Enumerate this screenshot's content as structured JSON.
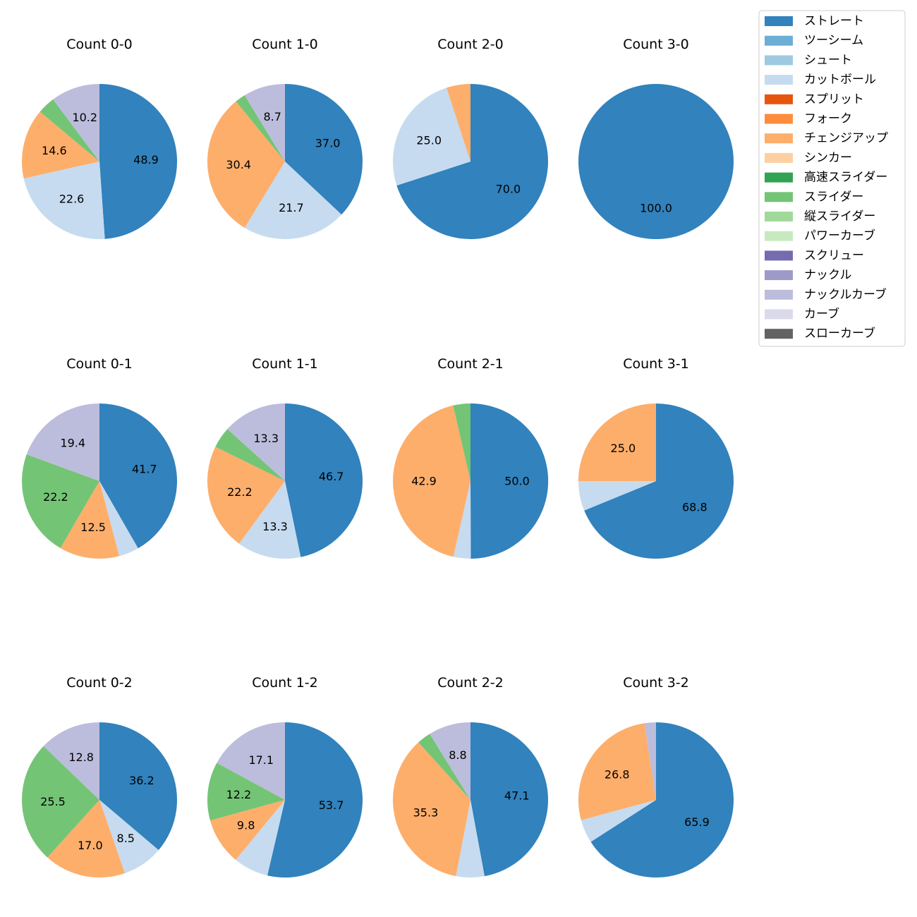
{
  "chart_data": {
    "type": "pie",
    "legend_position": "top-right",
    "series": [
      {
        "name": "ストレート",
        "color": "#3182bd"
      },
      {
        "name": "ツーシーム",
        "color": "#6baed6"
      },
      {
        "name": "シュート",
        "color": "#9ecae1"
      },
      {
        "name": "カットボール",
        "color": "#c6dbef"
      },
      {
        "name": "スプリット",
        "color": "#e6550d"
      },
      {
        "name": "フォーク",
        "color": "#fd8d3c"
      },
      {
        "name": "チェンジアップ",
        "color": "#fdae6b"
      },
      {
        "name": "シンカー",
        "color": "#fdd0a2"
      },
      {
        "name": "高速スライダー",
        "color": "#31a354"
      },
      {
        "name": "スライダー",
        "color": "#74c476"
      },
      {
        "name": "縦スライダー",
        "color": "#a1d99b"
      },
      {
        "name": "パワーカーブ",
        "color": "#c7e9c0"
      },
      {
        "name": "スクリュー",
        "color": "#756bb1"
      },
      {
        "name": "ナックル",
        "color": "#9e9ac8"
      },
      {
        "name": "ナックルカーブ",
        "color": "#bcbddc"
      },
      {
        "name": "カーブ",
        "color": "#dadaeb"
      },
      {
        "name": "スローカーブ",
        "color": "#636363"
      }
    ],
    "charts": [
      {
        "title": "Count 0-0",
        "slices": [
          {
            "pitch": "ストレート",
            "value": 48.9,
            "label": "48.9"
          },
          {
            "pitch": "カットボール",
            "value": 22.6,
            "label": "22.6"
          },
          {
            "pitch": "チェンジアップ",
            "value": 14.6,
            "label": "14.6"
          },
          {
            "pitch": "スライダー",
            "value": 3.7,
            "label": ""
          },
          {
            "pitch": "ナックルカーブ",
            "value": 10.2,
            "label": "10.2"
          }
        ]
      },
      {
        "title": "Count 1-0",
        "slices": [
          {
            "pitch": "ストレート",
            "value": 37.0,
            "label": "37.0"
          },
          {
            "pitch": "カットボール",
            "value": 21.7,
            "label": "21.7"
          },
          {
            "pitch": "チェンジアップ",
            "value": 30.4,
            "label": "30.4"
          },
          {
            "pitch": "スライダー",
            "value": 2.2,
            "label": ""
          },
          {
            "pitch": "ナックルカーブ",
            "value": 8.7,
            "label": "8.7"
          }
        ]
      },
      {
        "title": "Count 2-0",
        "slices": [
          {
            "pitch": "ストレート",
            "value": 70.0,
            "label": "70.0"
          },
          {
            "pitch": "カットボール",
            "value": 25.0,
            "label": "25.0"
          },
          {
            "pitch": "チェンジアップ",
            "value": 5.0,
            "label": ""
          }
        ]
      },
      {
        "title": "Count 3-0",
        "slices": [
          {
            "pitch": "ストレート",
            "value": 100.0,
            "label": "100.0"
          }
        ]
      },
      {
        "title": "Count 0-1",
        "slices": [
          {
            "pitch": "ストレート",
            "value": 41.7,
            "label": "41.7"
          },
          {
            "pitch": "カットボール",
            "value": 4.2,
            "label": ""
          },
          {
            "pitch": "チェンジアップ",
            "value": 12.5,
            "label": "12.5"
          },
          {
            "pitch": "スライダー",
            "value": 22.2,
            "label": "22.2"
          },
          {
            "pitch": "ナックルカーブ",
            "value": 19.4,
            "label": "19.4"
          }
        ]
      },
      {
        "title": "Count 1-1",
        "slices": [
          {
            "pitch": "ストレート",
            "value": 46.7,
            "label": "46.7"
          },
          {
            "pitch": "カットボール",
            "value": 13.3,
            "label": "13.3"
          },
          {
            "pitch": "チェンジアップ",
            "value": 22.2,
            "label": "22.2"
          },
          {
            "pitch": "スライダー",
            "value": 4.4,
            "label": ""
          },
          {
            "pitch": "ナックルカーブ",
            "value": 13.3,
            "label": "13.3"
          }
        ]
      },
      {
        "title": "Count 2-1",
        "slices": [
          {
            "pitch": "ストレート",
            "value": 50.0,
            "label": "50.0"
          },
          {
            "pitch": "カットボール",
            "value": 3.6,
            "label": ""
          },
          {
            "pitch": "チェンジアップ",
            "value": 42.9,
            "label": "42.9"
          },
          {
            "pitch": "スライダー",
            "value": 3.6,
            "label": ""
          }
        ]
      },
      {
        "title": "Count 3-1",
        "slices": [
          {
            "pitch": "ストレート",
            "value": 68.8,
            "label": "68.8"
          },
          {
            "pitch": "カットボール",
            "value": 6.2,
            "label": ""
          },
          {
            "pitch": "チェンジアップ",
            "value": 25.0,
            "label": "25.0"
          }
        ]
      },
      {
        "title": "Count 0-2",
        "slices": [
          {
            "pitch": "ストレート",
            "value": 36.2,
            "label": "36.2"
          },
          {
            "pitch": "カットボール",
            "value": 8.5,
            "label": "8.5"
          },
          {
            "pitch": "チェンジアップ",
            "value": 17.0,
            "label": "17.0"
          },
          {
            "pitch": "スライダー",
            "value": 25.5,
            "label": "25.5"
          },
          {
            "pitch": "ナックルカーブ",
            "value": 12.8,
            "label": "12.8"
          }
        ]
      },
      {
        "title": "Count 1-2",
        "slices": [
          {
            "pitch": "ストレート",
            "value": 53.7,
            "label": "53.7"
          },
          {
            "pitch": "カットボール",
            "value": 7.3,
            "label": ""
          },
          {
            "pitch": "チェンジアップ",
            "value": 9.8,
            "label": "9.8"
          },
          {
            "pitch": "スライダー",
            "value": 12.2,
            "label": "12.2"
          },
          {
            "pitch": "ナックルカーブ",
            "value": 17.1,
            "label": "17.1"
          }
        ]
      },
      {
        "title": "Count 2-2",
        "slices": [
          {
            "pitch": "ストレート",
            "value": 47.1,
            "label": "47.1"
          },
          {
            "pitch": "カットボール",
            "value": 5.9,
            "label": ""
          },
          {
            "pitch": "チェンジアップ",
            "value": 35.3,
            "label": "35.3"
          },
          {
            "pitch": "スライダー",
            "value": 2.9,
            "label": ""
          },
          {
            "pitch": "ナックルカーブ",
            "value": 8.8,
            "label": "8.8"
          }
        ]
      },
      {
        "title": "Count 3-2",
        "slices": [
          {
            "pitch": "ストレート",
            "value": 65.9,
            "label": "65.9"
          },
          {
            "pitch": "カットボール",
            "value": 4.9,
            "label": ""
          },
          {
            "pitch": "チェンジアップ",
            "value": 26.8,
            "label": "26.8"
          },
          {
            "pitch": "ナックルカーブ",
            "value": 2.4,
            "label": ""
          }
        ]
      }
    ]
  }
}
